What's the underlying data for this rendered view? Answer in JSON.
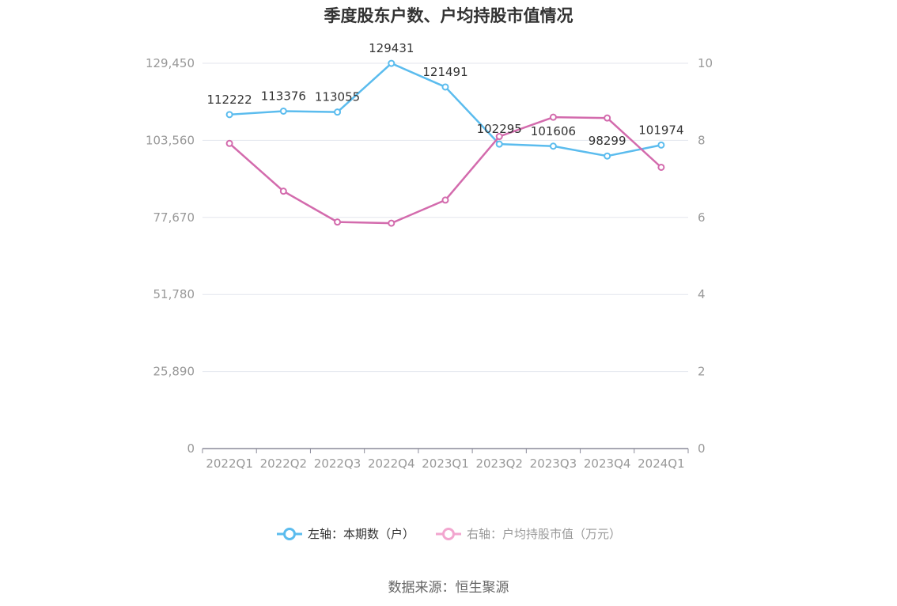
{
  "colors": {
    "left_series": "#5bbcee",
    "right_series": "#d36bad",
    "right_legend": "#f2a6cf",
    "grid": "#e3e6ee",
    "axis": "#8c8c9a",
    "tick": "#999999",
    "label": "#333333"
  },
  "chart_data": {
    "type": "line",
    "title": "季度股东户数、户均持股市值情况",
    "categories": [
      "2022Q1",
      "2022Q2",
      "2022Q3",
      "2022Q4",
      "2023Q1",
      "2023Q2",
      "2023Q3",
      "2023Q4",
      "2024Q1"
    ],
    "left_axis": {
      "ylim": [
        0,
        129450
      ],
      "ticks": [
        "0",
        "25,890",
        "51,780",
        "77,670",
        "103,560",
        "129,450"
      ]
    },
    "right_axis": {
      "ylim": [
        0,
        10
      ],
      "ticks": [
        "0",
        "2",
        "4",
        "6",
        "8",
        "10"
      ]
    },
    "series": [
      {
        "name": "左轴：本期数（户）",
        "axis": "left",
        "values": [
          112222,
          113376,
          113055,
          129431,
          121491,
          102295,
          101606,
          98299,
          101974
        ],
        "labels": [
          "112222",
          "113376",
          "113055",
          "129431",
          "121491",
          "102295",
          "101606",
          "98299",
          "101974"
        ]
      },
      {
        "name": "右轴：户均持股市值（万元）",
        "axis": "right",
        "values": [
          7.92,
          6.68,
          5.88,
          5.85,
          6.45,
          8.1,
          8.6,
          8.58,
          7.3
        ]
      }
    ],
    "grid": true,
    "legend_position": "bottom"
  },
  "source": "数据来源：恒生聚源"
}
